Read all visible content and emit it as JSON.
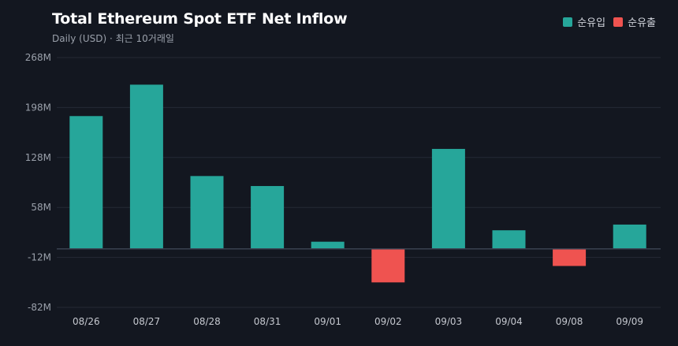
{
  "header": {
    "title": "Total Ethereum Spot ETF Net Inflow",
    "subtitle": "Daily (USD) · 최근 10거래일"
  },
  "legend": [
    {
      "label": "순유입",
      "color": "#26a69a"
    },
    {
      "label": "순유출",
      "color": "#ef5350"
    }
  ],
  "chart_data": {
    "type": "bar",
    "title": "Total Ethereum Spot ETF Net Inflow",
    "subtitle": "Daily (USD) · 최근 10거래일",
    "categories": [
      "08/26",
      "08/27",
      "08/28",
      "08/31",
      "09/01",
      "09/02",
      "09/03",
      "09/04",
      "09/08",
      "09/09"
    ],
    "values": [
      186,
      230,
      102,
      88,
      10,
      -47,
      140,
      26,
      -24,
      34
    ],
    "unit": "M",
    "ylim": [
      -82,
      268
    ],
    "yticks": [
      268,
      198,
      128,
      58,
      -12,
      -82
    ],
    "ytick_labels": [
      "268M",
      "198M",
      "128M",
      "58M",
      "-12M",
      "-82M"
    ],
    "colors": {
      "positive": "#26a69a",
      "negative": "#ef5350"
    },
    "grid": true,
    "legend_position": "top-right"
  }
}
